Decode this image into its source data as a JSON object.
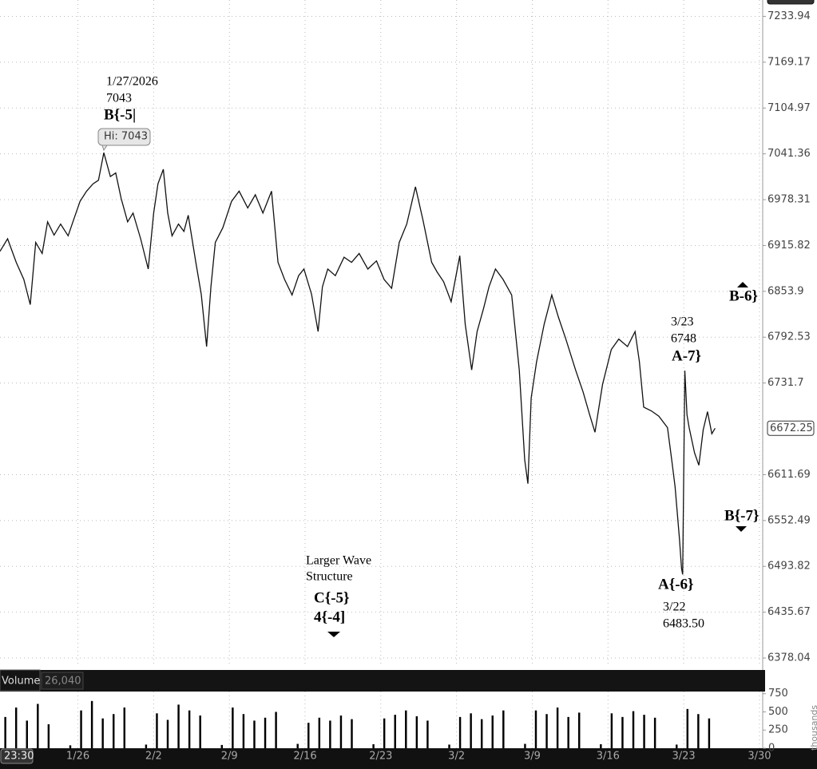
{
  "chart_data": [
    {
      "type": "line",
      "log_scale": true,
      "grid": true,
      "color": "#111111",
      "ylim": [
        6367.1,
        7261.72
      ],
      "yticks": [
        7233.94,
        7169.17,
        7104.97,
        7041.36,
        6978.31,
        6915.82,
        6853.9,
        6792.53,
        6731.7,
        6611.69,
        6552.49,
        6493.82,
        6435.67,
        6378.04
      ],
      "xlim": [
        0,
        70.5
      ],
      "series": [
        {
          "name": "Price",
          "color": "#111111",
          "x": [
            0,
            0.7,
            1.5,
            2.2,
            2.8,
            3.3,
            3.9,
            4.4,
            5.0,
            5.6,
            6.3,
            6.9,
            7.4,
            8.0,
            8.6,
            9.1,
            9.6,
            10.2,
            10.7,
            11.2,
            11.8,
            12.3,
            13.0,
            13.7,
            14.2,
            14.6,
            15.1,
            15.5,
            15.9,
            16.5,
            17.0,
            17.4,
            18.1,
            18.6,
            19.1,
            19.5,
            19.9,
            20.6,
            21.4,
            22.1,
            22.9,
            23.6,
            24.3,
            25.1,
            25.7,
            26.3,
            27.0,
            27.6,
            28.1,
            28.8,
            29.4,
            29.8,
            30.3,
            31.0,
            31.8,
            32.5,
            33.2,
            34.0,
            34.8,
            35.5,
            36.2,
            36.9,
            37.6,
            38.4,
            39.1,
            39.9,
            40.4,
            41.0,
            41.7,
            42.5,
            43.0,
            43.6,
            44.1,
            44.7,
            45.2,
            45.8,
            46.5,
            47.3,
            48.0,
            48.5,
            48.8,
            49.1,
            49.6,
            50.3,
            51.0,
            51.6,
            52.3,
            53.2,
            53.9,
            54.5,
            55.0,
            55.7,
            56.5,
            57.2,
            58.0,
            58.7,
            59.1,
            59.5,
            60.2,
            60.9,
            61.7,
            62.1,
            62.4,
            62.8,
            63.0,
            63.1,
            63.3,
            63.5,
            63.7,
            64.2,
            64.6,
            65.0,
            65.4,
            65.8,
            66.1
          ],
          "values": [
            6908,
            6925,
            6893,
            6870,
            6836,
            6920,
            6905,
            6948,
            6930,
            6945,
            6929,
            6955,
            6976,
            6990,
            7000,
            7005,
            7043,
            7010,
            7015,
            6980,
            6948,
            6960,
            6925,
            6884,
            6960,
            7000,
            7020,
            6960,
            6929,
            6945,
            6935,
            6957,
            6893,
            6850,
            6780,
            6860,
            6920,
            6940,
            6976,
            6990,
            6967,
            6985,
            6960,
            6990,
            6893,
            6870,
            6849,
            6875,
            6884,
            6850,
            6800,
            6860,
            6884,
            6875,
            6900,
            6893,
            6905,
            6884,
            6895,
            6870,
            6858,
            6920,
            6945,
            6996,
            6950,
            6893,
            6880,
            6867,
            6840,
            6902,
            6810,
            6749,
            6800,
            6831,
            6860,
            6884,
            6870,
            6849,
            6749,
            6631,
            6600,
            6712,
            6760,
            6810,
            6849,
            6820,
            6790,
            6749,
            6720,
            6690,
            6667,
            6730,
            6776,
            6790,
            6780,
            6800,
            6760,
            6700,
            6695,
            6688,
            6673,
            6630,
            6596,
            6530,
            6491,
            6483.5,
            6748,
            6690,
            6673,
            6640,
            6624,
            6670,
            6694,
            6665,
            6672.25
          ]
        }
      ],
      "annotations": [
        "1/27/2026",
        "7043",
        "B{-5|",
        "Hi: 7043",
        "B-6}",
        "3/23",
        "6748",
        "A-7}",
        "B{-7}",
        "Larger Wave",
        "Structure",
        "C{-5}",
        "4{-4]",
        "A{-6}",
        "3/22",
        "6483.50"
      ]
    },
    {
      "type": "bar",
      "title": "Volume",
      "last_volume": "26,040",
      "axis_unit": "thousands",
      "time_label": "23:30",
      "color": "#000000",
      "ylim": [
        0,
        780
      ],
      "yticks": [
        0,
        250,
        500,
        750
      ],
      "xlim": [
        0,
        70.5
      ],
      "xticks": [
        {
          "value": 7.2,
          "label": "1/26"
        },
        {
          "value": 14.2,
          "label": "2/2"
        },
        {
          "value": 21.2,
          "label": "2/9"
        },
        {
          "value": 28.2,
          "label": "2/16"
        },
        {
          "value": 35.2,
          "label": "2/23"
        },
        {
          "value": 42.2,
          "label": "3/2"
        },
        {
          "value": 49.2,
          "label": "3/9"
        },
        {
          "value": 56.2,
          "label": "3/16"
        },
        {
          "value": 63.2,
          "label": "3/23"
        },
        {
          "value": 70.2,
          "label": "3/30"
        }
      ],
      "values": [
        430,
        560,
        380,
        610,
        330,
        0,
        40,
        520,
        650,
        410,
        470,
        560,
        0,
        50,
        480,
        390,
        600,
        520,
        450,
        0,
        45,
        560,
        470,
        380,
        420,
        500,
        0,
        60,
        350,
        420,
        380,
        450,
        400,
        0,
        55,
        410,
        460,
        520,
        440,
        380,
        0,
        50,
        430,
        480,
        400,
        450,
        520,
        0,
        60,
        520,
        470,
        560,
        430,
        490,
        0,
        55,
        480,
        430,
        510,
        460,
        420,
        0,
        50,
        540,
        470,
        410
      ]
    }
  ]
}
